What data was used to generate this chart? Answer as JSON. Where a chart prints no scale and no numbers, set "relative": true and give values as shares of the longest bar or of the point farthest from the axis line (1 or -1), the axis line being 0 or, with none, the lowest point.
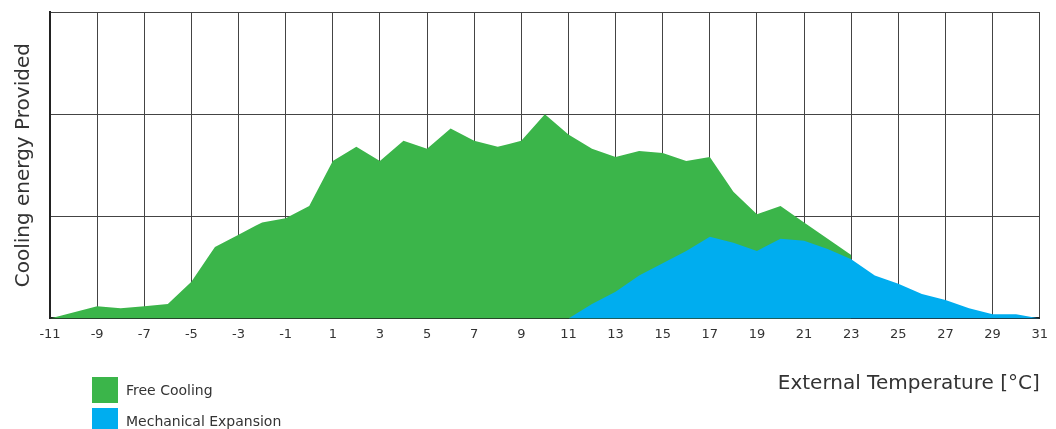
{
  "chart_data": {
    "type": "area",
    "relative": true,
    "xlabel": "External Temperature [°C]",
    "ylabel": "Cooling energy Provided",
    "xlim": [
      -11,
      31
    ],
    "xticks": [
      -11,
      -9,
      -7,
      -5,
      -3,
      -1,
      1,
      3,
      5,
      7,
      9,
      11,
      13,
      15,
      17,
      19,
      21,
      23,
      25,
      27,
      29,
      31
    ],
    "grid": true,
    "legend": "bottom left",
    "marker": "none",
    "series": [
      {
        "name": "Free Cooling",
        "color": "#3bb54a",
        "x": [
          -11,
          -9,
          -8,
          -7,
          -6,
          -5,
          -4,
          -3,
          -2,
          -1,
          0,
          1,
          2,
          3,
          4,
          5,
          6,
          7,
          8,
          9,
          10,
          11,
          12,
          13,
          14,
          15,
          16,
          17,
          18,
          19,
          20,
          21,
          22,
          23
        ],
        "values": [
          0,
          0.06,
          0.05,
          0.06,
          0.07,
          0.18,
          0.35,
          0.41,
          0.47,
          0.49,
          0.55,
          0.77,
          0.84,
          0.77,
          0.87,
          0.83,
          0.93,
          0.87,
          0.84,
          0.87,
          1,
          0.9,
          0.83,
          0.79,
          0.82,
          0.81,
          0.77,
          0.79,
          0.62,
          0.51,
          0.55,
          0.47,
          0.39,
          0.31
        ]
      },
      {
        "name": "Mechanical Expansion",
        "color": "#00adef",
        "x": [
          11,
          12,
          13,
          14,
          15,
          16,
          17,
          18,
          19,
          20,
          21,
          22,
          23,
          24,
          25,
          26,
          27,
          28,
          29,
          30,
          31
        ],
        "values": [
          0,
          0.07,
          0.13,
          0.21,
          0.27,
          0.33,
          0.4,
          0.37,
          0.33,
          0.39,
          0.38,
          0.34,
          0.29,
          0.21,
          0.17,
          0.12,
          0.09,
          0.05,
          0.02,
          0.02,
          0
        ]
      }
    ]
  }
}
